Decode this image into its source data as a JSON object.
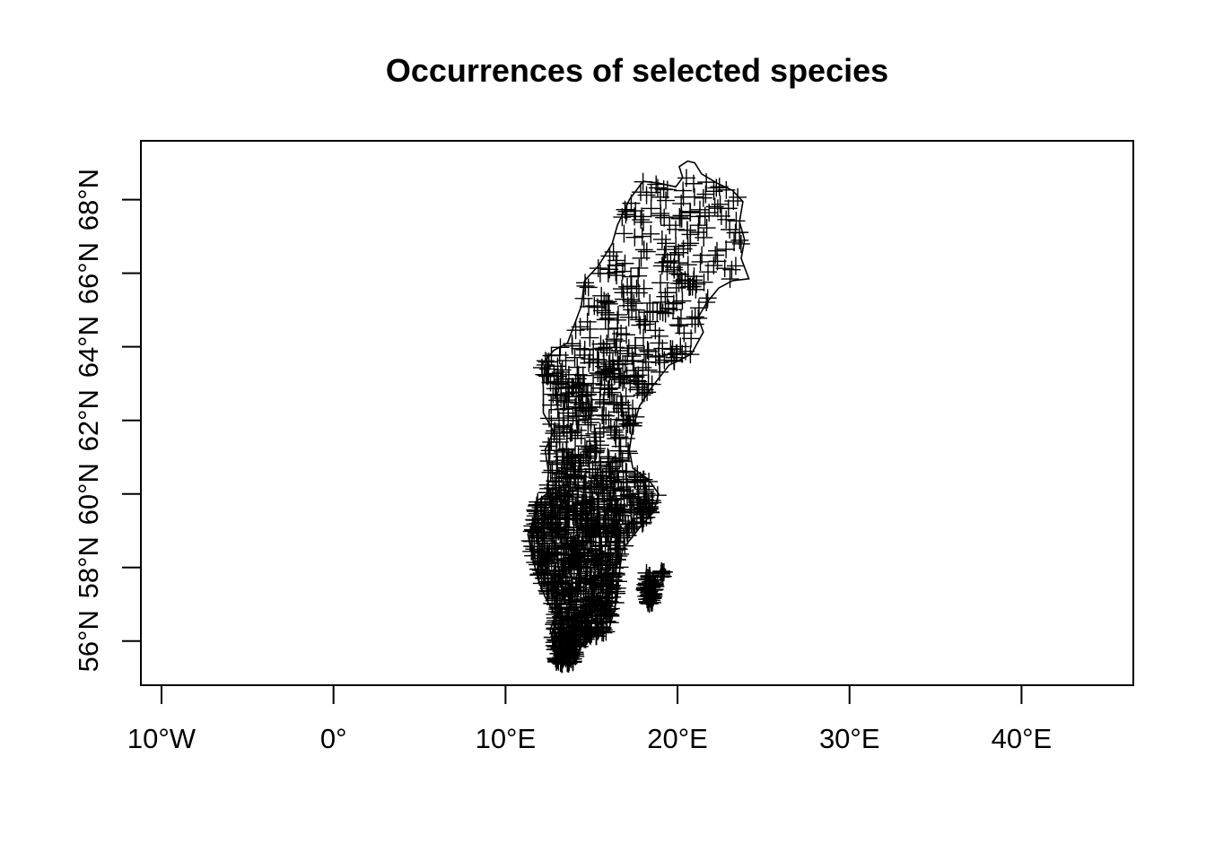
{
  "title": "Occurrences of selected species",
  "colors": {
    "ink": "#000000",
    "background": "#ffffff"
  },
  "map": {
    "projection": "longlat",
    "marker": "plus",
    "xlim": [
      -11.2,
      46.5
    ],
    "ylim": [
      54.8,
      69.6
    ],
    "x_ticks": [
      {
        "value": -10,
        "label": "10°W"
      },
      {
        "value": 0,
        "label": "0°"
      },
      {
        "value": 10,
        "label": "10°E"
      },
      {
        "value": 20,
        "label": "20°E"
      },
      {
        "value": 30,
        "label": "30°E"
      },
      {
        "value": 40,
        "label": "40°E"
      }
    ],
    "y_ticks": [
      {
        "value": 56,
        "label": "56°N"
      },
      {
        "value": 58,
        "label": "58°N"
      },
      {
        "value": 60,
        "label": "60°N"
      },
      {
        "value": 62,
        "label": "62°N"
      },
      {
        "value": 64,
        "label": "64°N"
      },
      {
        "value": 66,
        "label": "66°N"
      },
      {
        "value": 68,
        "label": "68°N"
      }
    ],
    "outline": [
      [
        20.6,
        69.05
      ],
      [
        21.0,
        69.0
      ],
      [
        21.4,
        68.7
      ],
      [
        22.3,
        68.45
      ],
      [
        23.2,
        68.25
      ],
      [
        23.8,
        67.95
      ],
      [
        23.6,
        67.4
      ],
      [
        23.9,
        66.9
      ],
      [
        23.7,
        66.4
      ],
      [
        24.15,
        65.85
      ],
      [
        23.2,
        65.8
      ],
      [
        22.4,
        65.6
      ],
      [
        21.7,
        65.2
      ],
      [
        21.2,
        64.8
      ],
      [
        21.5,
        64.4
      ],
      [
        20.8,
        63.8
      ],
      [
        19.5,
        63.5
      ],
      [
        18.5,
        62.9
      ],
      [
        17.8,
        62.4
      ],
      [
        17.4,
        61.8
      ],
      [
        17.2,
        61.2
      ],
      [
        17.4,
        60.7
      ],
      [
        18.3,
        60.4
      ],
      [
        18.9,
        60.0
      ],
      [
        18.6,
        59.5
      ],
      [
        18.0,
        59.2
      ],
      [
        17.5,
        58.9
      ],
      [
        16.8,
        58.5
      ],
      [
        16.6,
        57.8
      ],
      [
        16.5,
        57.2
      ],
      [
        16.3,
        56.8
      ],
      [
        16.0,
        56.3
      ],
      [
        15.6,
        56.15
      ],
      [
        14.8,
        56.1
      ],
      [
        14.2,
        55.7
      ],
      [
        14.1,
        55.4
      ],
      [
        13.6,
        55.35
      ],
      [
        12.9,
        55.4
      ],
      [
        12.8,
        55.9
      ],
      [
        12.6,
        56.3
      ],
      [
        12.9,
        56.7
      ],
      [
        12.3,
        57.2
      ],
      [
        11.95,
        57.6
      ],
      [
        11.6,
        58.2
      ],
      [
        11.3,
        58.9
      ],
      [
        11.6,
        59.2
      ],
      [
        11.8,
        59.8
      ],
      [
        12.4,
        60.0
      ],
      [
        12.5,
        60.6
      ],
      [
        12.3,
        61.2
      ],
      [
        12.8,
        61.7
      ],
      [
        12.2,
        62.2
      ],
      [
        12.2,
        62.9
      ],
      [
        12.1,
        63.5
      ],
      [
        12.8,
        63.9
      ],
      [
        13.6,
        64.1
      ],
      [
        14.0,
        64.6
      ],
      [
        14.4,
        65.1
      ],
      [
        14.6,
        65.8
      ],
      [
        15.4,
        66.2
      ],
      [
        16.2,
        66.8
      ],
      [
        16.5,
        67.3
      ],
      [
        17.2,
        68.0
      ],
      [
        18.0,
        68.5
      ],
      [
        18.9,
        68.45
      ],
      [
        19.9,
        68.35
      ],
      [
        20.3,
        68.6
      ],
      [
        20.1,
        68.9
      ],
      [
        20.6,
        69.05
      ]
    ],
    "gotland": [
      [
        18.2,
        57.95
      ],
      [
        18.5,
        57.85
      ],
      [
        18.75,
        57.6
      ],
      [
        19.2,
        57.75
      ],
      [
        19.3,
        57.95
      ],
      [
        19.1,
        58.0
      ],
      [
        18.9,
        57.85
      ],
      [
        18.7,
        57.4
      ],
      [
        18.55,
        57.05
      ],
      [
        18.3,
        56.95
      ],
      [
        18.15,
        57.2
      ],
      [
        18.05,
        57.5
      ],
      [
        18.2,
        57.95
      ]
    ]
  }
}
